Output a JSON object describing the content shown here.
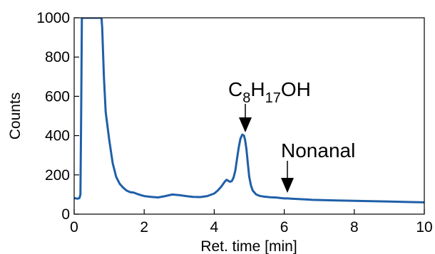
{
  "chart_data": {
    "type": "line",
    "title": "",
    "xlabel": "Ret. time [min]",
    "ylabel": "Counts",
    "xlim": [
      0,
      10
    ],
    "ylim": [
      0,
      1000
    ],
    "xticks": [
      0,
      2,
      4,
      6,
      8,
      10
    ],
    "yticks": [
      0,
      200,
      400,
      600,
      800,
      1000
    ],
    "grid": false,
    "line_color": "#1f5fa8",
    "series": [
      {
        "x": [
          0.0,
          0.05,
          0.1,
          0.15,
          0.18,
          0.2,
          0.22,
          0.24,
          0.27,
          0.3,
          0.35,
          0.4,
          0.5,
          0.6,
          0.7,
          0.75,
          0.78,
          0.8,
          0.85,
          0.9,
          1.0,
          1.1,
          1.2,
          1.3,
          1.4,
          1.5,
          1.6,
          1.7,
          1.8,
          1.9,
          2.0,
          2.2,
          2.4,
          2.6,
          2.8,
          3.0,
          3.2,
          3.4,
          3.6,
          3.8,
          4.0,
          4.1,
          4.2,
          4.3,
          4.35,
          4.4,
          4.45,
          4.5,
          4.55,
          4.6,
          4.65,
          4.7,
          4.75,
          4.8,
          4.85,
          4.88,
          4.92,
          4.96,
          5.0,
          5.05,
          5.1,
          5.2,
          5.3,
          5.4,
          5.5,
          5.6,
          5.7,
          5.8,
          5.9,
          6.0,
          6.1,
          6.2,
          6.3,
          6.4,
          6.6,
          6.8,
          7.0,
          7.5,
          8.0,
          8.5,
          9.0,
          9.5,
          10.0
        ],
        "y": [
          82,
          80,
          79,
          82,
          100,
          500,
          1000,
          1000,
          1000,
          1000,
          1000,
          1000,
          1000,
          1000,
          1000,
          1000,
          1000,
          950,
          700,
          520,
          380,
          260,
          190,
          155,
          135,
          120,
          112,
          110,
          103,
          97,
          92,
          88,
          85,
          92,
          100,
          97,
          92,
          88,
          87,
          92,
          105,
          120,
          140,
          165,
          175,
          170,
          165,
          168,
          185,
          220,
          280,
          340,
          385,
          405,
          400,
          380,
          330,
          260,
          190,
          145,
          120,
          100,
          93,
          90,
          88,
          86,
          85,
          84,
          82,
          80,
          80,
          79,
          78,
          77,
          75,
          73,
          72,
          70,
          68,
          66,
          64,
          62,
          60
        ]
      }
    ],
    "annotations": [
      {
        "main": "C",
        "sub1": "8",
        "mid": "H",
        "sub2": "17",
        "tail": "OH",
        "x": 4.88,
        "y": 405
      },
      {
        "text": "Nonanal",
        "x": 6.05,
        "y": 90
      }
    ]
  }
}
